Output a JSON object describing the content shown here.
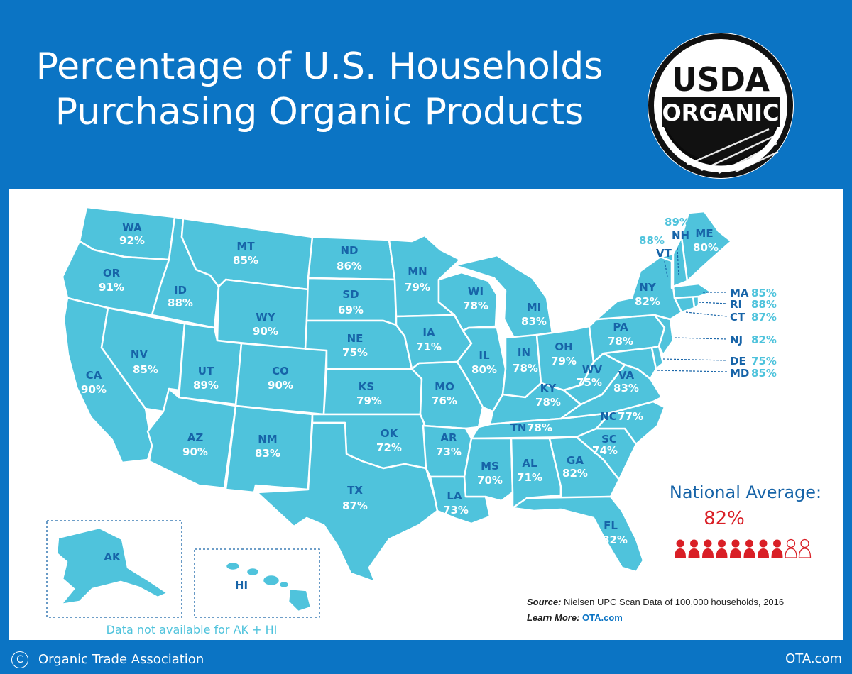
{
  "title": {
    "line1": "Percentage of U.S. Households",
    "line2": "Purchasing Organic Products"
  },
  "seal": {
    "top_text": "USDA",
    "bottom_text": "ORGANIC"
  },
  "colors": {
    "background": "#0b74c4",
    "state_fill": "#4fc3dc",
    "label_blue": "#1764a8",
    "accent_red": "#d91f26"
  },
  "states": [
    {
      "abbr": "WA",
      "pct": "92%"
    },
    {
      "abbr": "OR",
      "pct": "91%"
    },
    {
      "abbr": "CA",
      "pct": "90%"
    },
    {
      "abbr": "ID",
      "pct": "88%"
    },
    {
      "abbr": "NV",
      "pct": "85%"
    },
    {
      "abbr": "MT",
      "pct": "85%"
    },
    {
      "abbr": "WY",
      "pct": "90%"
    },
    {
      "abbr": "UT",
      "pct": "89%"
    },
    {
      "abbr": "CO",
      "pct": "90%"
    },
    {
      "abbr": "AZ",
      "pct": "90%"
    },
    {
      "abbr": "NM",
      "pct": "83%"
    },
    {
      "abbr": "ND",
      "pct": "86%"
    },
    {
      "abbr": "SD",
      "pct": "69%"
    },
    {
      "abbr": "NE",
      "pct": "75%"
    },
    {
      "abbr": "KS",
      "pct": "79%"
    },
    {
      "abbr": "OK",
      "pct": "72%"
    },
    {
      "abbr": "TX",
      "pct": "87%"
    },
    {
      "abbr": "MN",
      "pct": "79%"
    },
    {
      "abbr": "IA",
      "pct": "71%"
    },
    {
      "abbr": "MO",
      "pct": "76%"
    },
    {
      "abbr": "AR",
      "pct": "73%"
    },
    {
      "abbr": "LA",
      "pct": "73%"
    },
    {
      "abbr": "WI",
      "pct": "78%"
    },
    {
      "abbr": "IL",
      "pct": "80%"
    },
    {
      "abbr": "MI",
      "pct": "83%"
    },
    {
      "abbr": "IN",
      "pct": "78%"
    },
    {
      "abbr": "OH",
      "pct": "79%"
    },
    {
      "abbr": "KY",
      "pct": "78%"
    },
    {
      "abbr": "TN",
      "pct": "78%"
    },
    {
      "abbr": "MS",
      "pct": "70%"
    },
    {
      "abbr": "AL",
      "pct": "71%"
    },
    {
      "abbr": "GA",
      "pct": "82%"
    },
    {
      "abbr": "FL",
      "pct": "82%"
    },
    {
      "abbr": "SC",
      "pct": "74%"
    },
    {
      "abbr": "NC",
      "pct": "77%"
    },
    {
      "abbr": "VA",
      "pct": "83%"
    },
    {
      "abbr": "WV",
      "pct": "75%"
    },
    {
      "abbr": "PA",
      "pct": "78%"
    },
    {
      "abbr": "NY",
      "pct": "82%"
    },
    {
      "abbr": "ME",
      "pct": "80%"
    },
    {
      "abbr": "VT",
      "pct": "88%"
    },
    {
      "abbr": "NH",
      "pct": "89%"
    },
    {
      "abbr": "MA",
      "pct": "85%"
    },
    {
      "abbr": "RI",
      "pct": "88%"
    },
    {
      "abbr": "CT",
      "pct": "87%"
    },
    {
      "abbr": "NJ",
      "pct": "82%"
    },
    {
      "abbr": "DE",
      "pct": "75%"
    },
    {
      "abbr": "MD",
      "pct": "85%"
    }
  ],
  "insets": {
    "ak": "AK",
    "hi": "HI",
    "note": "Data not available for AK + HI"
  },
  "national_average": {
    "label": "National Average:",
    "value": "82%",
    "filled_icons": 8,
    "total_icons": 10
  },
  "source": {
    "label": "Source:",
    "text": " Nielsen UPC Scan Data of 100,000 households, 2016"
  },
  "learn_more": {
    "label": "Learn More:",
    "link": "OTA.com"
  },
  "footer": {
    "copyright_symbol": "C",
    "org": "Organic Trade Association",
    "site": "OTA.com"
  }
}
